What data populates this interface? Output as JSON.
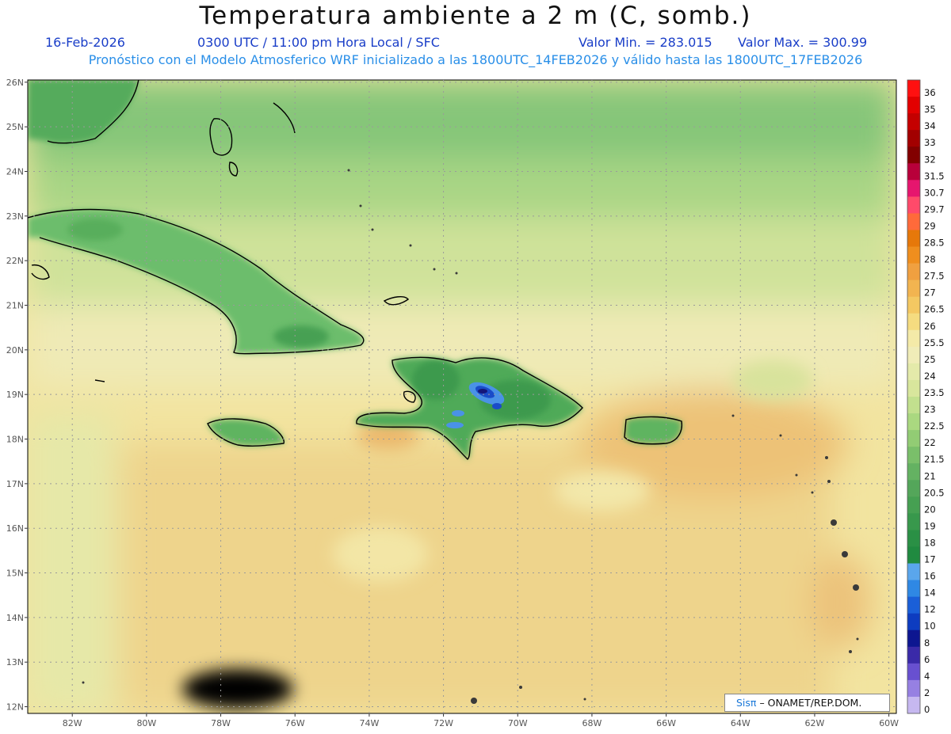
{
  "header": {
    "title": "Temperatura ambiente a 2 m (C, somb.)",
    "date": "16-Feb-2026",
    "time": "0300 UTC / 11:00 pm Hora Local / SFC",
    "min": "Valor Min. = 283.015",
    "max": "Valor Max. = 300.99",
    "subtitle": "Pronóstico con el Modelo Atmosferico WRF inicializado a las 1800UTC_14FEB2026 y válido hasta las  1800UTC_17FEB2026"
  },
  "map": {
    "lon_range": [
      -83.2,
      -59.8
    ],
    "lat_range": [
      11.85,
      26.05
    ],
    "lon_ticks": [
      "82W",
      "80W",
      "78W",
      "76W",
      "74W",
      "72W",
      "70W",
      "68W",
      "66W",
      "64W",
      "62W",
      "60W"
    ],
    "lat_ticks": [
      "12N",
      "13N",
      "14N",
      "15N",
      "16N",
      "17N",
      "18N",
      "19N",
      "20N",
      "21N",
      "22N",
      "23N",
      "24N",
      "25N",
      "26N"
    ],
    "lon_tick_values": [
      -82,
      -80,
      -78,
      -76,
      -74,
      -72,
      -70,
      -68,
      -66,
      -64,
      -62,
      -60
    ],
    "lat_tick_values": [
      12,
      13,
      14,
      15,
      16,
      17,
      18,
      19,
      20,
      21,
      22,
      23,
      24,
      25,
      26
    ],
    "grid": "dotted"
  },
  "colorbar": {
    "labels": [
      "36",
      "35",
      "34",
      "33",
      "32",
      "31.5",
      "30.7",
      "29.7",
      "29",
      "28.5",
      "28",
      "27.5",
      "27",
      "26.5",
      "26",
      "25.5",
      "25",
      "24",
      "23.5",
      "23",
      "22.5",
      "22",
      "21.5",
      "21",
      "20.5",
      "20",
      "19",
      "18",
      "17",
      "16",
      "14",
      "12",
      "10",
      "8",
      "6",
      "4",
      "2",
      "0"
    ],
    "colors": [
      "#ff1010",
      "#e20000",
      "#c40000",
      "#a20000",
      "#820000",
      "#b8003a",
      "#e6166e",
      "#ff4a6a",
      "#ff6a3a",
      "#e6780a",
      "#ef8e1e",
      "#f0a040",
      "#f2b450",
      "#f4c862",
      "#f5dc80",
      "#f4eaa8",
      "#f0ecb8",
      "#e4eaaa",
      "#d8e69c",
      "#c2e08e",
      "#aad880",
      "#92cc74",
      "#7abf6a",
      "#64b262",
      "#54a65a",
      "#46a052",
      "#38984c",
      "#2a9045",
      "#208a40",
      "#5aa6ec",
      "#2f88e4",
      "#1a5fd8",
      "#0d3cc0",
      "#0d1690",
      "#3a2aa8",
      "#6850d0",
      "#9680e2",
      "#c6b8f0"
    ]
  },
  "credit": {
    "brand": "Sisπ",
    "org": "– ONAMET/REP.DOM."
  }
}
